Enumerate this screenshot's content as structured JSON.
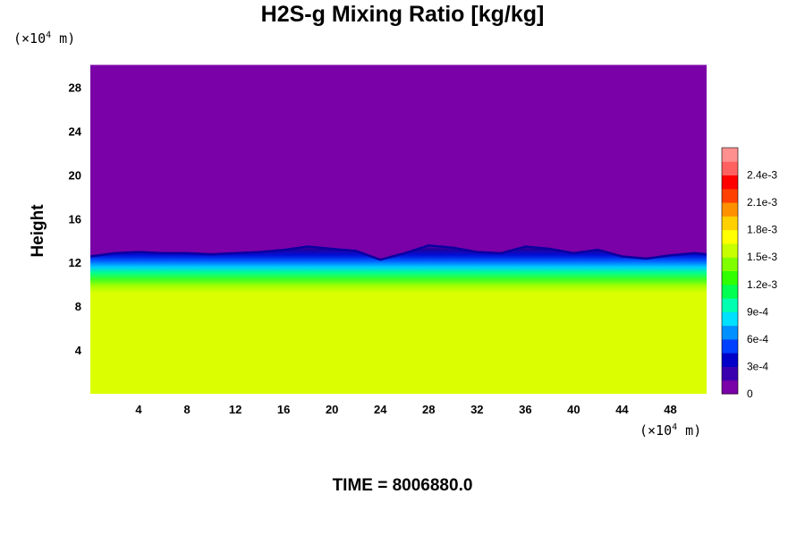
{
  "title": "H2S-g Mixing Ratio [kg/kg]",
  "time_label": "TIME = 8006880.0",
  "colors": {
    "background_field": "#7a00a8",
    "lower_field": "#dbff00",
    "transition": [
      "#20009e",
      "#0010d8",
      "#0060ff",
      "#00c8ff",
      "#00ff90",
      "#40ff20",
      "#a8ff00"
    ]
  },
  "chart_data": {
    "type": "heatmap",
    "title": "H2S-g Mixing Ratio [kg/kg]",
    "ylabel": "Height",
    "xlabel": "",
    "x_unit_prefix": "(×10",
    "x_unit_exp": "4",
    "x_unit_suffix": " m)",
    "y_unit_prefix": "(×10",
    "y_unit_exp": "4",
    "y_unit_suffix": " m)",
    "xlim": [
      0,
      51
    ],
    "ylim": [
      0,
      30
    ],
    "x_ticks": [
      "4",
      "8",
      "12",
      "16",
      "20",
      "24",
      "28",
      "32",
      "36",
      "40",
      "44",
      "48"
    ],
    "y_ticks": [
      "4",
      "8",
      "12",
      "16",
      "20",
      "24",
      "28"
    ],
    "field_summary": {
      "upper_layer_value": 0,
      "lower_layer_value": 0.0018,
      "interface_height": 12.5
    },
    "interface_profile": {
      "x": [
        0,
        2,
        4,
        6,
        8,
        10,
        12,
        14,
        16,
        18,
        20,
        22,
        24,
        26,
        28,
        30,
        32,
        34,
        36,
        38,
        40,
        42,
        44,
        46,
        48,
        50,
        51
      ],
      "y": [
        12.3,
        12.6,
        12.7,
        12.6,
        12.6,
        12.5,
        12.6,
        12.7,
        12.9,
        13.2,
        13.0,
        12.8,
        12.0,
        12.6,
        13.3,
        13.1,
        12.7,
        12.6,
        13.2,
        13.0,
        12.6,
        12.9,
        12.3,
        12.1,
        12.4,
        12.6,
        12.5
      ]
    },
    "colorbar": {
      "min": 0,
      "max": 0.0027,
      "tick_labels": [
        "0",
        "3e-4",
        "6e-4",
        "9e-4",
        "1.2e-3",
        "1.5e-3",
        "1.8e-3",
        "2.1e-3",
        "2.4e-3"
      ],
      "tick_values": [
        0,
        0.0003,
        0.0006,
        0.0009,
        0.0012,
        0.0015,
        0.0018,
        0.0021,
        0.0024
      ],
      "colors": [
        "#7a00a8",
        "#3a00b0",
        "#0000c8",
        "#0040ff",
        "#0090ff",
        "#00e0ff",
        "#00ffb0",
        "#00ff50",
        "#30ff00",
        "#80ff00",
        "#c8ff00",
        "#ffff00",
        "#ffd000",
        "#ff9000",
        "#ff4000",
        "#ff0000",
        "#ff6060",
        "#ff9090"
      ]
    }
  }
}
